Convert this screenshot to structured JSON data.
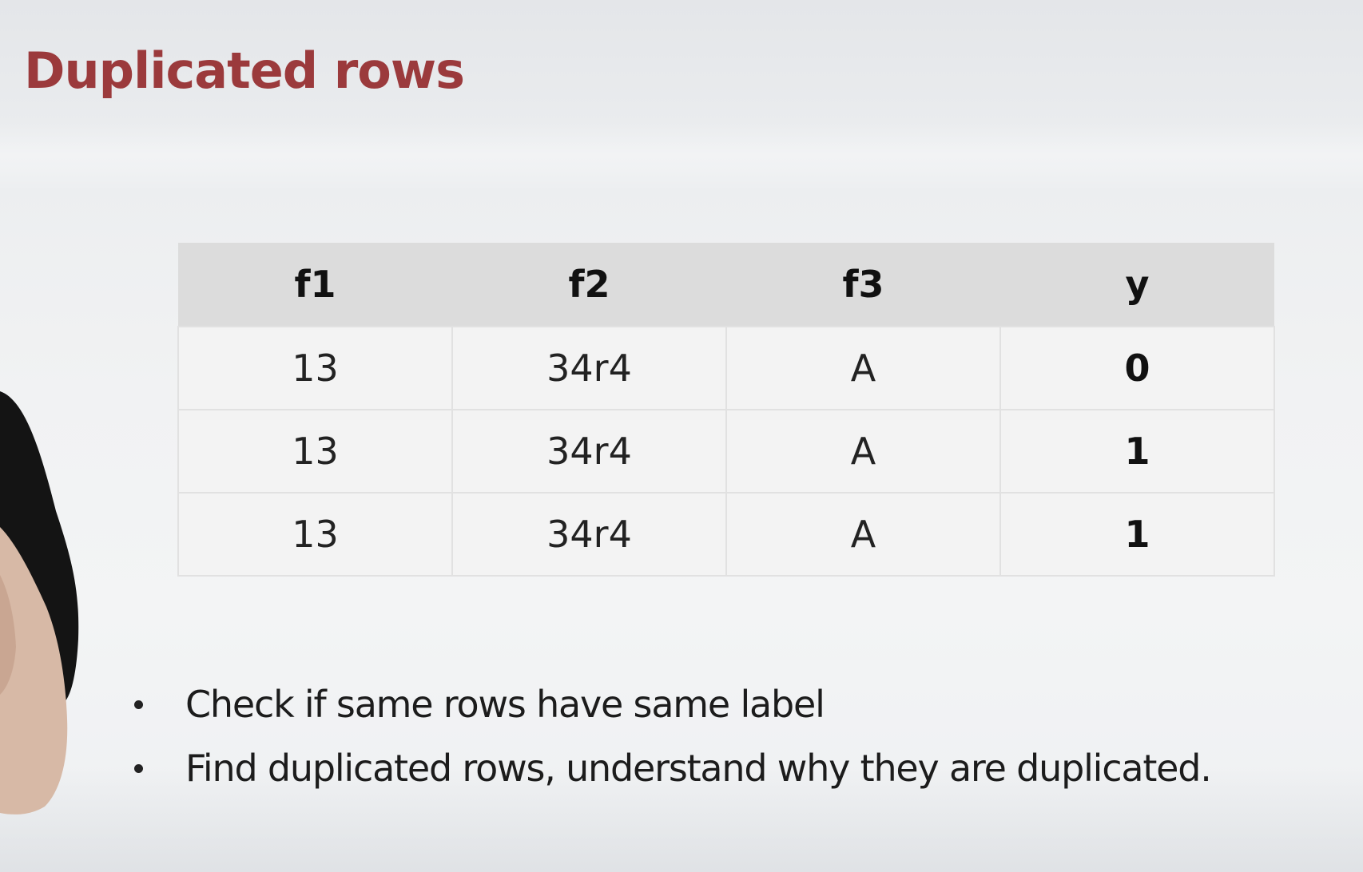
{
  "slide": {
    "title": "Duplicated rows"
  },
  "table": {
    "headers": [
      "f1",
      "f2",
      "f3",
      "y"
    ],
    "rows": [
      [
        "13",
        "34r4",
        "A",
        "0"
      ],
      [
        "13",
        "34r4",
        "A",
        "1"
      ],
      [
        "13",
        "34r4",
        "A",
        "1"
      ]
    ]
  },
  "bullets": [
    "Check if same rows have same label",
    "Find duplicated rows, understand why they are duplicated."
  ],
  "colors": {
    "title": "#9b3a3c",
    "header_bg": "#dcdcdc",
    "cell_bg": "#f3f3f3"
  }
}
